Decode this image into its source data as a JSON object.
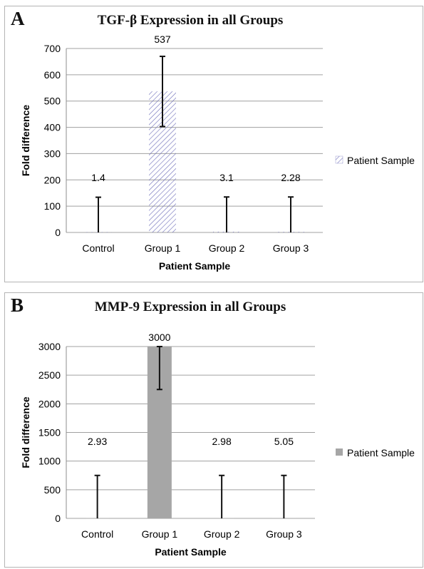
{
  "panels": [
    {
      "letter": "A",
      "chart_data": {
        "type": "bar",
        "title": "TGF-β Expression in all Groups",
        "xlabel": "Patient Sample",
        "ylabel": "Fold difference",
        "categories": [
          "Control",
          "Group 1",
          "Group 2",
          "Group 3"
        ],
        "series": [
          {
            "name": "Patient Sample",
            "values": [
              1.4,
              537,
              3.1,
              2.28
            ],
            "error_high": [
              134,
              670,
              135,
              135
            ],
            "error_low": [
              0,
              403,
              0,
              0
            ],
            "data_labels": [
              "1.4",
              "537",
              "3.1",
              "2.28"
            ],
            "fill": "hatch",
            "color": "#6a6ab8"
          }
        ],
        "ylim": [
          0,
          700
        ],
        "yticks": [
          0,
          100,
          200,
          300,
          400,
          500,
          600,
          700
        ],
        "grid": true,
        "legend_position": "right"
      }
    },
    {
      "letter": "B",
      "chart_data": {
        "type": "bar",
        "title": "MMP-9 Expression in all Groups",
        "xlabel": "Patient Sample",
        "ylabel": "Fold difference",
        "categories": [
          "Control",
          "Group 1",
          "Group 2",
          "Group 3"
        ],
        "series": [
          {
            "name": "Patient Sample",
            "values": [
              2.93,
              3000,
              2.98,
              5.05
            ],
            "error_high": [
              750,
              3000,
              750,
              750
            ],
            "error_low": [
              0,
              2250,
              0,
              0
            ],
            "data_labels": [
              "2.93",
              "3000",
              "2.98",
              "5.05"
            ],
            "fill": "solid",
            "color": "#a6a6a6"
          }
        ],
        "ylim": [
          0,
          3000
        ],
        "yticks": [
          0,
          500,
          1000,
          1500,
          2000,
          2500,
          3000
        ],
        "grid": true,
        "legend_position": "right"
      }
    }
  ]
}
